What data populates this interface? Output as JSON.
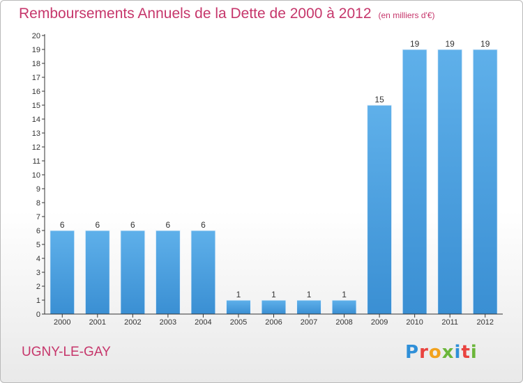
{
  "page": {
    "title": "Remboursements Annuels de la Dette de 2000 à 2012",
    "unit": "(en milliers d'€)",
    "commune": "UGNY-LE-GAY",
    "logo": {
      "letters": [
        "P",
        "r",
        "o",
        "x",
        "i",
        "t",
        "i"
      ],
      "colors": [
        "#2f8fd8",
        "#e9433f",
        "#f2a21d",
        "#6bb63a",
        "#2f8fd8",
        "#e9433f",
        "#6bb63a"
      ]
    }
  },
  "chart_data": {
    "type": "bar",
    "title": "Remboursements Annuels de la Dette de 2000 à 2012",
    "categories": [
      "2000",
      "2001",
      "2002",
      "2003",
      "2004",
      "2005",
      "2006",
      "2007",
      "2008",
      "2009",
      "2010",
      "2011",
      "2012"
    ],
    "values": [
      6,
      6,
      6,
      6,
      6,
      1,
      1,
      1,
      1,
      15,
      19,
      19,
      19
    ],
    "ylim": [
      0,
      20
    ],
    "yticks": [
      0,
      1,
      2,
      3,
      4,
      5,
      6,
      7,
      8,
      9,
      10,
      11,
      12,
      13,
      14,
      15,
      16,
      17,
      18,
      19,
      20
    ],
    "grid": false,
    "bar_color": "#3a8fd3",
    "bar_color_light": "#5fb0ea",
    "axis_color": "#333333"
  }
}
